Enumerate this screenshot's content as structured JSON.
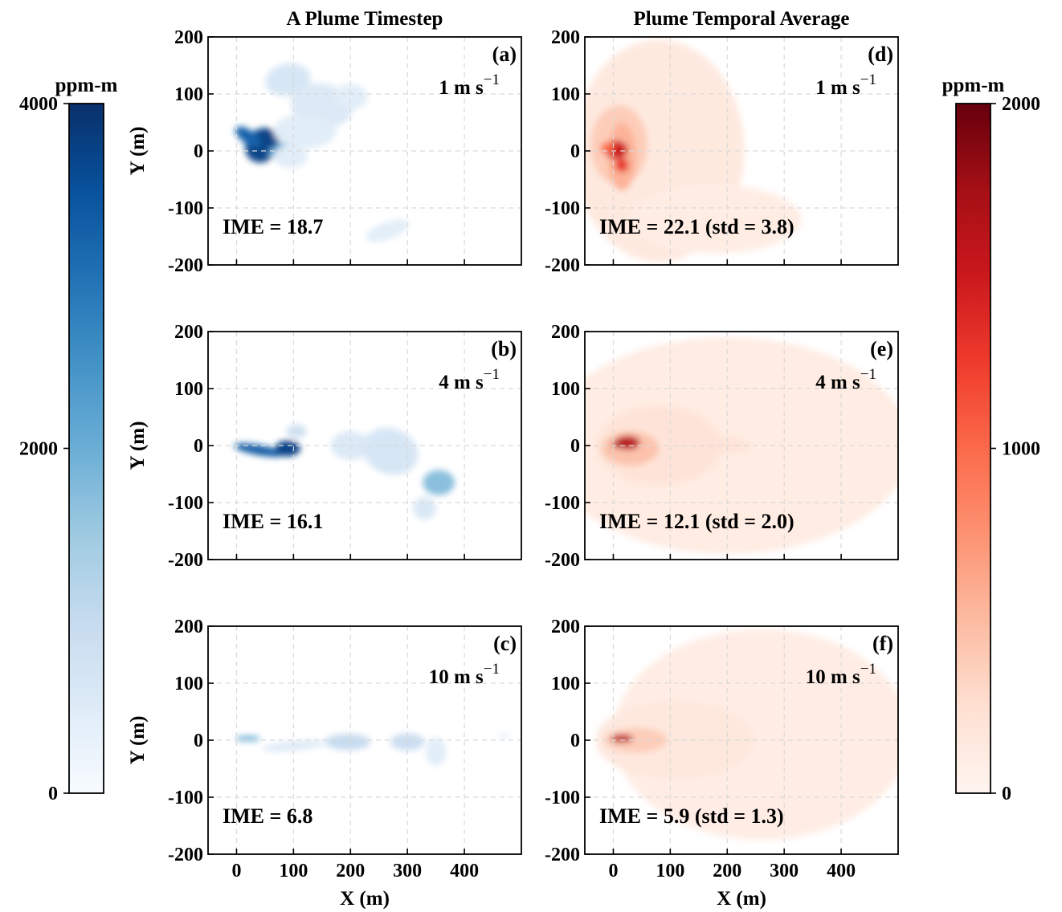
{
  "colors": {
    "blue_scale": [
      "#f7fbff",
      "#deebf7",
      "#c6dbef",
      "#9ecae1",
      "#6baed6",
      "#4292c6",
      "#2171b5",
      "#08519c",
      "#08306b"
    ],
    "red_scale": [
      "#fff5f0",
      "#fee0d2",
      "#fcbba1",
      "#fc9272",
      "#fb6a4a",
      "#ef3b2c",
      "#cb181d",
      "#a50f15",
      "#67000d"
    ],
    "grid": "#d9d9d9"
  },
  "columns": {
    "left_title": "A Plume Timestep",
    "right_title": "Plume Temporal Average"
  },
  "colorbars": [
    {
      "unit": "ppm-m",
      "scale": "blue",
      "min": 0,
      "max": 4000,
      "ticks": [
        {
          "value": 0,
          "label": "0"
        },
        {
          "value": 2000,
          "label": "2000"
        },
        {
          "value": 4000,
          "label": "4000"
        }
      ]
    },
    {
      "unit": "ppm-m",
      "scale": "red",
      "min": 0,
      "max": 2000,
      "ticks": [
        {
          "value": 0,
          "label": "0"
        },
        {
          "value": 1000,
          "label": "1000"
        },
        {
          "value": 2000,
          "label": "2000"
        }
      ]
    }
  ],
  "chart_data": [
    {
      "type": "heatmap",
      "panel": "(a)",
      "title": "",
      "wind": "1 m s",
      "wind_exp": "−1",
      "ime": "IME = 18.7",
      "xlabel": "",
      "ylabel": "Y (m)",
      "xlim": [
        -50,
        500
      ],
      "ylim": [
        -200,
        200
      ],
      "xticks": [],
      "yticks": [
        "200",
        "100",
        "0",
        "-100",
        "-200"
      ],
      "colormap": "blue",
      "vmax": 4000,
      "blobs": [
        {
          "x": 45,
          "y": 10,
          "rx": 28,
          "ry": 32,
          "rot": -40,
          "v": 3700
        },
        {
          "x": 20,
          "y": 25,
          "rx": 26,
          "ry": 12,
          "rot": -35,
          "v": 3200
        },
        {
          "x": 75,
          "y": 2,
          "rx": 22,
          "ry": 10,
          "rot": 25,
          "v": 2200
        },
        {
          "x": 90,
          "y": 125,
          "rx": 40,
          "ry": 28,
          "rot": 10,
          "v": 650
        },
        {
          "x": 150,
          "y": 80,
          "rx": 55,
          "ry": 38,
          "rot": -10,
          "v": 550
        },
        {
          "x": 120,
          "y": 35,
          "rx": 55,
          "ry": 30,
          "rot": 0,
          "v": 450
        },
        {
          "x": 200,
          "y": 95,
          "rx": 30,
          "ry": 22,
          "rot": 0,
          "v": 450
        },
        {
          "x": 95,
          "y": -10,
          "rx": 30,
          "ry": 20,
          "rot": 0,
          "v": 450
        },
        {
          "x": 265,
          "y": -140,
          "rx": 40,
          "ry": 15,
          "rot": 20,
          "v": 420
        }
      ]
    },
    {
      "type": "heatmap",
      "panel": "(b)",
      "title": "",
      "wind": "4 m s",
      "wind_exp": "−1",
      "ime": "IME = 16.1",
      "xlabel": "",
      "ylabel": "Y (m)",
      "xlim": [
        -50,
        500
      ],
      "ylim": [
        -200,
        200
      ],
      "xticks": [],
      "yticks": [
        "200",
        "100",
        "0",
        "-100",
        "-200"
      ],
      "colormap": "blue",
      "vmax": 4000,
      "blobs": [
        {
          "x": 40,
          "y": -8,
          "rx": 45,
          "ry": 9,
          "rot": -10,
          "v": 3300
        },
        {
          "x": 90,
          "y": -5,
          "rx": 22,
          "ry": 14,
          "rot": 0,
          "v": 3700
        },
        {
          "x": 105,
          "y": 25,
          "rx": 18,
          "ry": 12,
          "rot": 0,
          "v": 800
        },
        {
          "x": 200,
          "y": 0,
          "rx": 35,
          "ry": 25,
          "rot": 0,
          "v": 550
        },
        {
          "x": 270,
          "y": -10,
          "rx": 50,
          "ry": 40,
          "rot": -20,
          "v": 650
        },
        {
          "x": 355,
          "y": -65,
          "rx": 28,
          "ry": 22,
          "rot": 0,
          "v": 1700
        },
        {
          "x": 330,
          "y": -110,
          "rx": 20,
          "ry": 20,
          "rot": 0,
          "v": 600
        }
      ]
    },
    {
      "type": "heatmap",
      "panel": "(c)",
      "title": "",
      "wind": "10 m s",
      "wind_exp": "−1",
      "ime": "IME = 6.8",
      "xlabel": "X (m)",
      "ylabel": "Y (m)",
      "xlim": [
        -50,
        500
      ],
      "ylim": [
        -200,
        200
      ],
      "xticks": [
        "0",
        "100",
        "200",
        "300",
        "400"
      ],
      "yticks": [
        "200",
        "100",
        "0",
        "-100",
        "-200"
      ],
      "colormap": "blue",
      "vmax": 4000,
      "blobs": [
        {
          "x": 20,
          "y": 3,
          "rx": 22,
          "ry": 5,
          "rot": 0,
          "v": 1900
        },
        {
          "x": 100,
          "y": -10,
          "rx": 55,
          "ry": 8,
          "rot": 5,
          "v": 550
        },
        {
          "x": 195,
          "y": -3,
          "rx": 40,
          "ry": 14,
          "rot": 0,
          "v": 1000
        },
        {
          "x": 300,
          "y": -3,
          "rx": 30,
          "ry": 15,
          "rot": 0,
          "v": 900
        },
        {
          "x": 350,
          "y": -20,
          "rx": 18,
          "ry": 25,
          "rot": 0,
          "v": 450
        },
        {
          "x": 470,
          "y": 8,
          "rx": 10,
          "ry": 4,
          "rot": 0,
          "v": 380
        }
      ]
    },
    {
      "type": "heatmap",
      "panel": "(d)",
      "title": "",
      "wind": "1 m s",
      "wind_exp": "−1",
      "ime": "IME = 22.1 (std = 3.8)",
      "xlabel": "",
      "ylabel": "",
      "xlim": [
        -50,
        500
      ],
      "ylim": [
        -200,
        200
      ],
      "xticks": [],
      "yticks": [
        "200",
        "100",
        "0",
        "-100",
        "-200"
      ],
      "colormap": "red",
      "vmax": 2000,
      "blobs": [
        {
          "x": 80,
          "y": 0,
          "rx": 150,
          "ry": 195,
          "rot": 0,
          "v": 140
        },
        {
          "x": 180,
          "y": -120,
          "rx": 150,
          "ry": 60,
          "rot": 0,
          "v": 100
        },
        {
          "x": 10,
          "y": 10,
          "rx": 50,
          "ry": 70,
          "rot": 0,
          "v": 380
        },
        {
          "x": 15,
          "y": -10,
          "rx": 25,
          "ry": 60,
          "rot": 0,
          "v": 550
        },
        {
          "x": 5,
          "y": 2,
          "rx": 20,
          "ry": 16,
          "rot": 0,
          "v": 1500
        },
        {
          "x": 15,
          "y": -25,
          "rx": 12,
          "ry": 12,
          "rot": 0,
          "v": 1300
        },
        {
          "x": -10,
          "y": 5,
          "rx": 12,
          "ry": 10,
          "rot": 0,
          "v": 1000
        }
      ]
    },
    {
      "type": "heatmap",
      "panel": "(e)",
      "title": "",
      "wind": "4 m s",
      "wind_exp": "−1",
      "ime": "IME = 12.1 (std = 2.0)",
      "xlabel": "",
      "ylabel": "",
      "xlim": [
        -50,
        500
      ],
      "ylim": [
        -200,
        200
      ],
      "xticks": [],
      "yticks": [
        "200",
        "100",
        "0",
        "-100",
        "-200"
      ],
      "colormap": "red",
      "vmax": 2000,
      "blobs": [
        {
          "x": 200,
          "y": 0,
          "rx": 320,
          "ry": 190,
          "rot": 0,
          "v": 110
        },
        {
          "x": 80,
          "y": 0,
          "rx": 110,
          "ry": 70,
          "rot": 0,
          "v": 200
        },
        {
          "x": 30,
          "y": -5,
          "rx": 50,
          "ry": 30,
          "rot": 0,
          "v": 450
        },
        {
          "x": 200,
          "y": 0,
          "rx": 40,
          "ry": 15,
          "rot": 0,
          "v": 200
        },
        {
          "x": 25,
          "y": 5,
          "rx": 22,
          "ry": 12,
          "rot": 0,
          "v": 1600
        },
        {
          "x": 10,
          "y": 2,
          "rx": 12,
          "ry": 6,
          "rot": 0,
          "v": 1700
        }
      ]
    },
    {
      "type": "heatmap",
      "panel": "(f)",
      "title": "",
      "wind": "10 m s",
      "wind_exp": "−1",
      "ime": "IME = 5.9 (std = 1.3)",
      "xlabel": "X (m)",
      "ylabel": "",
      "xlim": [
        -50,
        500
      ],
      "ylim": [
        -200,
        200
      ],
      "xticks": [
        "0",
        "100",
        "200",
        "300",
        "400"
      ],
      "yticks": [
        "200",
        "100",
        "0",
        "-100",
        "-200"
      ],
      "colormap": "red",
      "vmax": 2000,
      "blobs": [
        {
          "x": 260,
          "y": 10,
          "rx": 260,
          "ry": 185,
          "rot": 0,
          "v": 90
        },
        {
          "x": 110,
          "y": 0,
          "rx": 140,
          "ry": 70,
          "rot": 0,
          "v": 150
        },
        {
          "x": 40,
          "y": 0,
          "rx": 55,
          "ry": 22,
          "rot": 0,
          "v": 380
        },
        {
          "x": 15,
          "y": 3,
          "rx": 20,
          "ry": 7,
          "rot": 0,
          "v": 1600
        }
      ]
    }
  ]
}
